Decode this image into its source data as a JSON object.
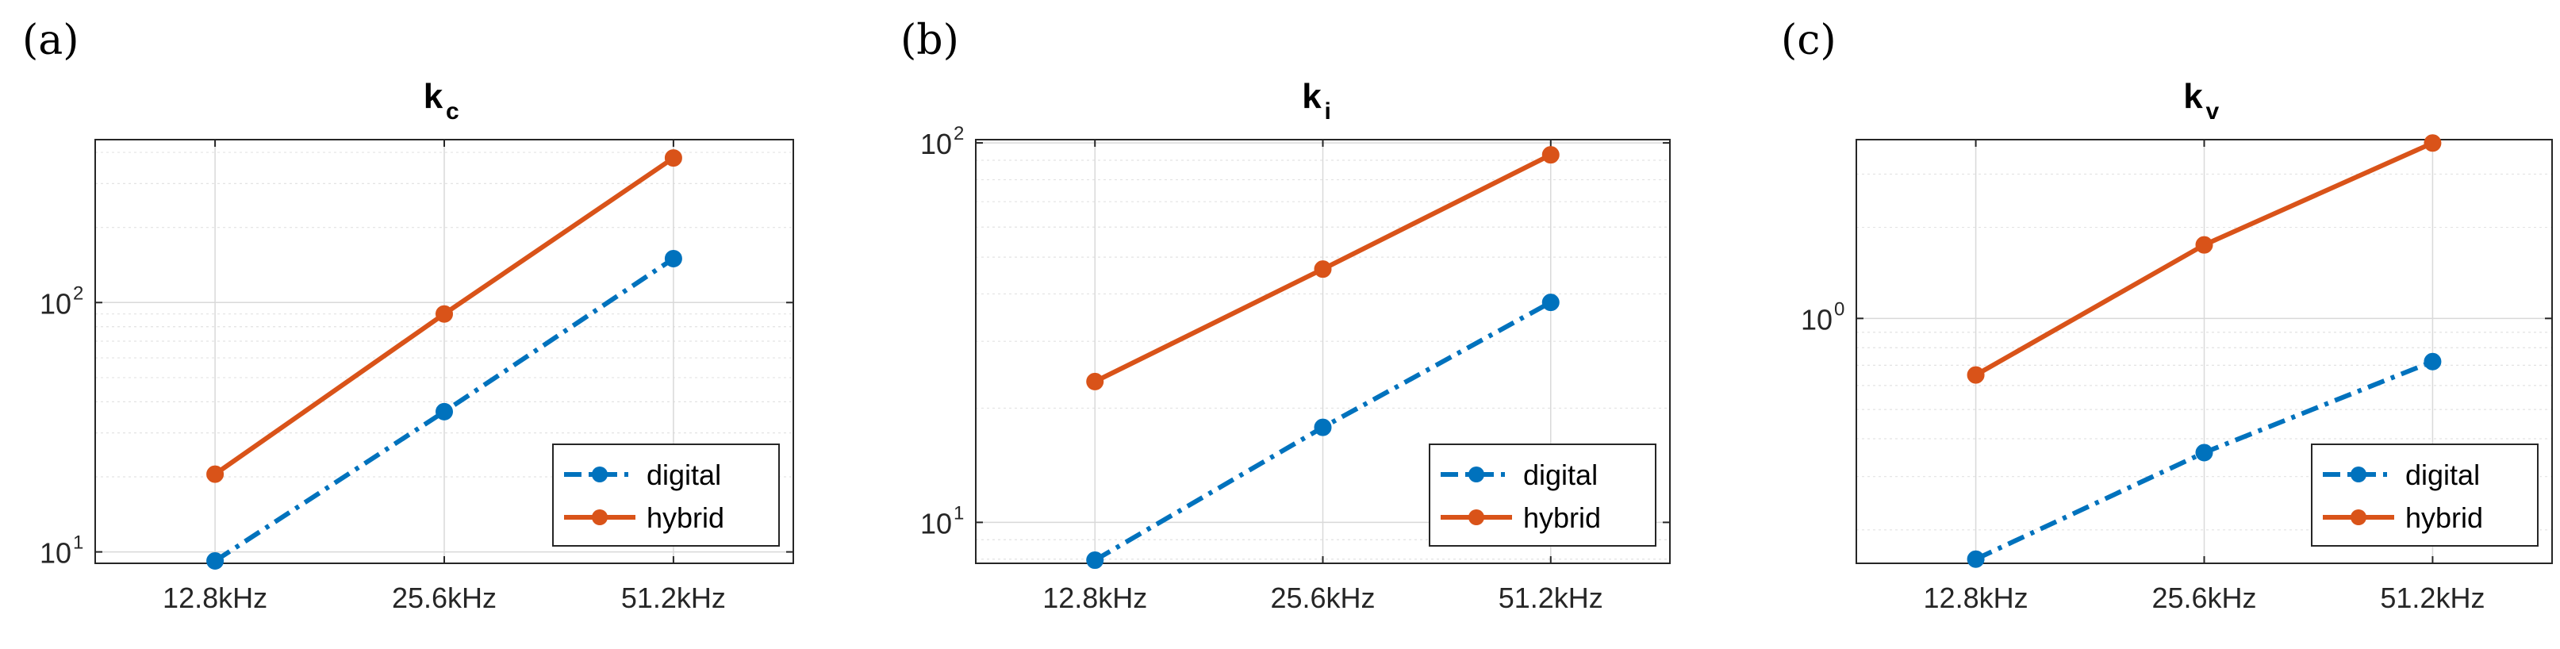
{
  "colors": {
    "digital": "#0072BD",
    "hybrid": "#D95319"
  },
  "chart_data": [
    {
      "type": "line",
      "panel_label": "(a)",
      "title": {
        "base": "k",
        "sub": "c"
      },
      "y_scale": "log",
      "ylim": [
        9,
        450
      ],
      "yticks": [
        {
          "value": 10,
          "base": "10",
          "exp": "1"
        },
        {
          "value": 100,
          "base": "10",
          "exp": "2"
        }
      ],
      "categories": [
        "12.8kHz",
        "25.6kHz",
        "51.2kHz"
      ],
      "series": [
        {
          "name": "digital",
          "values": [
            9.2,
            36.5,
            150
          ]
        },
        {
          "name": "hybrid",
          "values": [
            20.5,
            90,
            380
          ]
        }
      ],
      "legend": {
        "position": "bottom-right",
        "entries": [
          "digital",
          "hybrid"
        ]
      },
      "grid": true
    },
    {
      "type": "line",
      "panel_label": "(b)",
      "title": {
        "base": "k",
        "sub": "i"
      },
      "y_scale": "log",
      "ylim": [
        7.8,
        102
      ],
      "yticks": [
        {
          "value": 10,
          "base": "10",
          "exp": "1"
        },
        {
          "value": 100,
          "base": "10",
          "exp": "2"
        }
      ],
      "categories": [
        "12.8kHz",
        "25.6kHz",
        "51.2kHz"
      ],
      "series": [
        {
          "name": "digital",
          "values": [
            7.95,
            17.8,
            38
          ]
        },
        {
          "name": "hybrid",
          "values": [
            23.5,
            46.5,
            93
          ]
        }
      ],
      "legend": {
        "position": "bottom-right",
        "entries": [
          "digital",
          "hybrid"
        ]
      },
      "grid": true
    },
    {
      "type": "line",
      "panel_label": "(c)",
      "title": {
        "base": "k",
        "sub": "v"
      },
      "y_scale": "log",
      "ylim": [
        0.155,
        3.9
      ],
      "yticks": [
        {
          "value": 1,
          "base": "10",
          "exp": "0"
        }
      ],
      "categories": [
        "12.8kHz",
        "25.6kHz",
        "51.2kHz"
      ],
      "series": [
        {
          "name": "digital",
          "values": [
            0.16,
            0.36,
            0.72
          ]
        },
        {
          "name": "hybrid",
          "values": [
            0.65,
            1.75,
            3.8
          ]
        }
      ],
      "legend": {
        "position": "bottom-right",
        "entries": [
          "digital",
          "hybrid"
        ]
      },
      "grid": true
    }
  ]
}
